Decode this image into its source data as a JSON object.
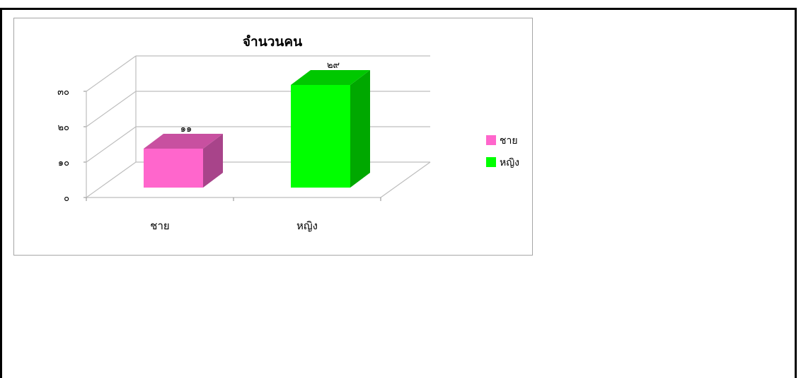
{
  "chart_data": {
    "type": "bar",
    "title": "จำนวนคน",
    "categories": [
      "ชาย",
      "หญิง"
    ],
    "values": [
      11,
      29
    ],
    "value_labels": [
      "๑๑",
      "๒๙"
    ],
    "y_ticks": [
      {
        "value": 0,
        "label": "๐"
      },
      {
        "value": 10,
        "label": "๑๐"
      },
      {
        "value": 20,
        "label": "๒๐"
      },
      {
        "value": 30,
        "label": "๓๐"
      }
    ],
    "ylim": [
      0,
      30
    ],
    "colors": [
      {
        "front": "#ff66cc",
        "top": "#c850a0",
        "side": "#a8448a"
      },
      {
        "front": "#00ff00",
        "top": "#00c800",
        "side": "#00a800"
      }
    ],
    "legend": {
      "position": "right",
      "entries": [
        {
          "label": "ชาย",
          "color": "#ff66cc"
        },
        {
          "label": "หญิง",
          "color": "#00ff00"
        }
      ]
    },
    "grid": true,
    "style": "3d-column"
  }
}
